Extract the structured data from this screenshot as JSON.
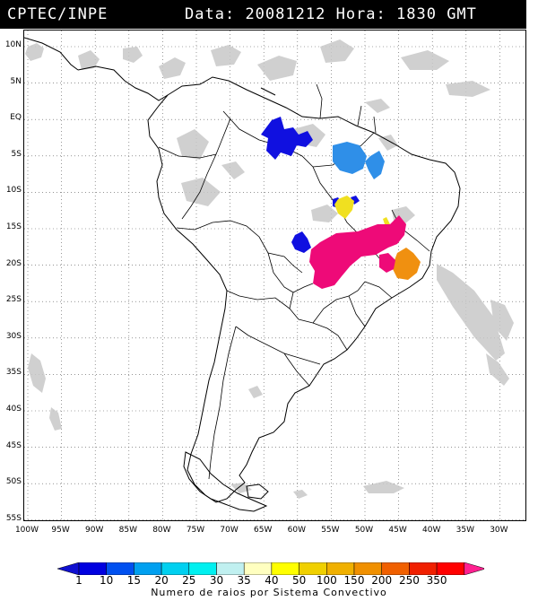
{
  "header": {
    "source": "CPTEC/INPE",
    "date_label": "Data:",
    "date_value": "20081212",
    "time_label": "Hora:",
    "time_value": "1830 GMT"
  },
  "map": {
    "lat_labels": [
      "10N",
      "5N",
      "EQ",
      "5S",
      "10S",
      "15S",
      "20S",
      "25S",
      "30S",
      "35S",
      "40S",
      "45S",
      "50S",
      "55S"
    ],
    "lon_labels": [
      "100W",
      "95W",
      "90W",
      "85W",
      "80W",
      "75W",
      "70W",
      "65W",
      "60W",
      "55W",
      "50W",
      "45W",
      "40W",
      "35W",
      "30W"
    ],
    "lightning_clusters": [
      {
        "category": "1",
        "color": "#1010e0"
      },
      {
        "category": "15",
        "color": "#2f8fe8"
      },
      {
        "category": "40",
        "color": "#f0e020"
      },
      {
        "category": "150",
        "color": "#f09010"
      },
      {
        "category": "350",
        "color": "#ee0a78"
      }
    ]
  },
  "colorbar": {
    "labels": [
      "1",
      "10",
      "15",
      "20",
      "25",
      "30",
      "35",
      "40",
      "50",
      "100",
      "150",
      "200",
      "250",
      "350"
    ],
    "colors": [
      "#0000e0",
      "#0050f0",
      "#00a0f0",
      "#00d0f0",
      "#00f0f0",
      "#c0f0f0",
      "#ffffc0",
      "#ffff00",
      "#f0d000",
      "#f0b000",
      "#f09000",
      "#f06000",
      "#f02000",
      "#ff0000"
    ],
    "left_arrow_color": "#1010d0",
    "right_arrow_color": "#ff2090",
    "title": "Numero de raios por Sistema Convectivo"
  }
}
